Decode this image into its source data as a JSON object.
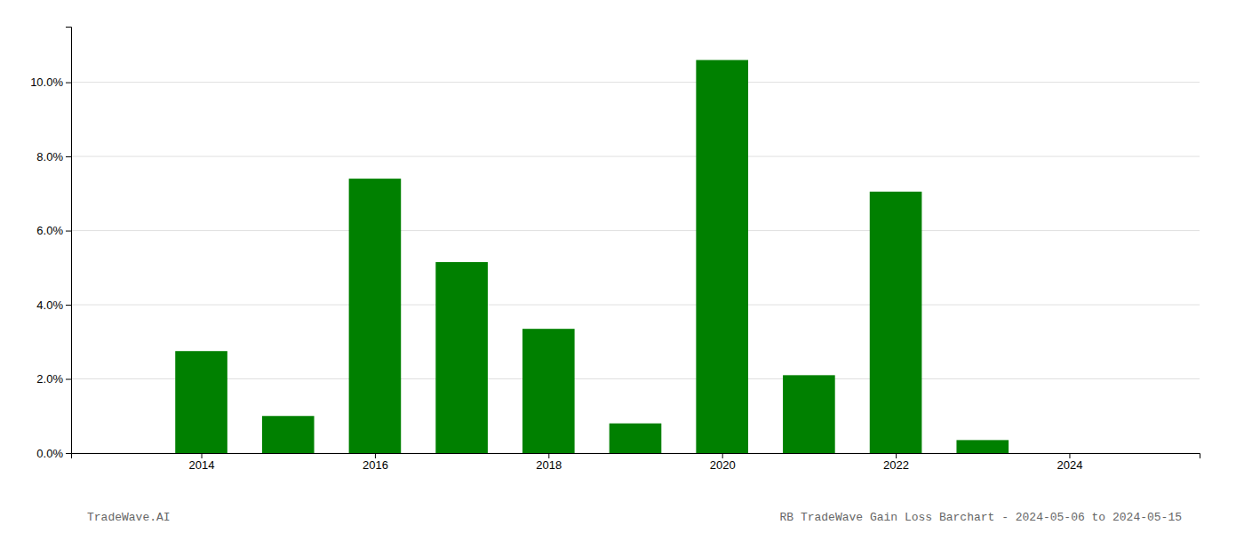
{
  "chart_data": {
    "type": "bar",
    "x": [
      2014,
      2015,
      2016,
      2017,
      2018,
      2019,
      2020,
      2021,
      2022,
      2023,
      2024
    ],
    "values": [
      0.0275,
      0.01,
      0.074,
      0.0515,
      0.0335,
      0.008,
      0.106,
      0.021,
      0.0705,
      0.0035,
      0.0
    ],
    "color": "#008000",
    "xlim": [
      2012.5,
      2025.5
    ],
    "xticks": [
      2014,
      2016,
      2018,
      2020,
      2022,
      2024
    ],
    "ylim": [
      0,
      0.115
    ],
    "yticks": [
      {
        "value": 0.0,
        "label": "0.0%"
      },
      {
        "value": 0.02,
        "label": "2.0%"
      },
      {
        "value": 0.04,
        "label": "4.0%"
      },
      {
        "value": 0.06,
        "label": "6.0%"
      },
      {
        "value": 0.08,
        "label": "8.0%"
      },
      {
        "value": 0.1,
        "label": "10.0%"
      }
    ],
    "grid": true,
    "annotations": [
      "TradeWave.AI",
      "RB TradeWave Gain Loss Barchart - 2024-05-06 to 2024-05-15"
    ]
  }
}
